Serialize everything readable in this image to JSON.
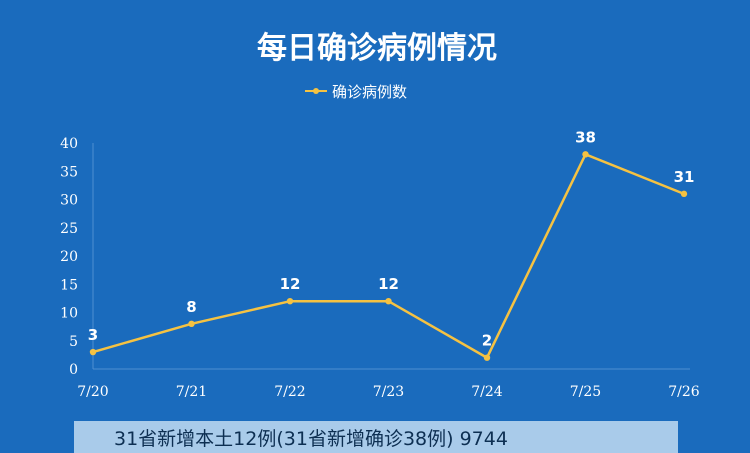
{
  "chart_data": {
    "type": "line",
    "title": "每日确诊病例情况",
    "categories": [
      "7/20",
      "7/21",
      "7/22",
      "7/23",
      "7/24",
      "7/25",
      "7/26"
    ],
    "series": [
      {
        "name": "确诊病例数",
        "values": [
          3,
          8,
          12,
          12,
          2,
          38,
          31
        ],
        "color": "#f5c242"
      }
    ],
    "yticks": [
      0,
      5,
      10,
      15,
      20,
      25,
      30,
      35,
      40
    ],
    "ylim": [
      0,
      40
    ],
    "xlabel": "",
    "ylabel": "",
    "grid": false,
    "legend": "top-center",
    "data_labels": true
  },
  "caption": "31省新增本土12例(31省新增确诊38例)  9744",
  "colors": {
    "background": "#1a6bbd",
    "line": "#f5c242",
    "caption_bg": "#a9cbea"
  }
}
